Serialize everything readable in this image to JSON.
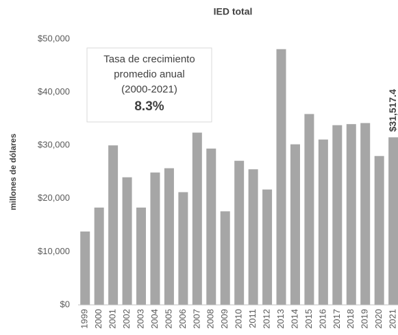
{
  "chart_data": {
    "type": "bar",
    "title": "IED total",
    "y_label": "millones de dólares",
    "categories": [
      "1999",
      "2000",
      "2001",
      "2002",
      "2003",
      "2004",
      "2005",
      "2006",
      "2007",
      "2008",
      "2009",
      "2010",
      "2011",
      "2012",
      "2013",
      "2014",
      "2015",
      "2016",
      "2017",
      "2018",
      "2019",
      "2020",
      "2021"
    ],
    "values": [
      13800,
      18300,
      30000,
      24000,
      18300,
      24900,
      25700,
      21200,
      32400,
      29400,
      17600,
      27100,
      25500,
      21700,
      48100,
      30200,
      35900,
      31100,
      33800,
      34000,
      34200,
      28000,
      31517.4
    ],
    "value_labels": [
      null,
      null,
      null,
      null,
      null,
      null,
      null,
      null,
      null,
      null,
      null,
      null,
      null,
      null,
      null,
      null,
      null,
      null,
      null,
      null,
      null,
      null,
      "$31,517.4"
    ],
    "color": "#a6a6a6",
    "ylim": [
      0,
      50000
    ],
    "yticks": [
      {
        "value": 0,
        "label": "$0"
      },
      {
        "value": 10000,
        "label": "$10,000"
      },
      {
        "value": 20000,
        "label": "$20,000"
      },
      {
        "value": 30000,
        "label": "$30,000"
      },
      {
        "value": 40000,
        "label": "$40,000"
      },
      {
        "value": 50000,
        "label": "$50,000"
      }
    ],
    "grid": false,
    "annotation": {
      "lines": [
        "Tasa de crecimiento",
        "promedio anual",
        "(2000-2021)"
      ],
      "highlight": "8.3%"
    }
  }
}
